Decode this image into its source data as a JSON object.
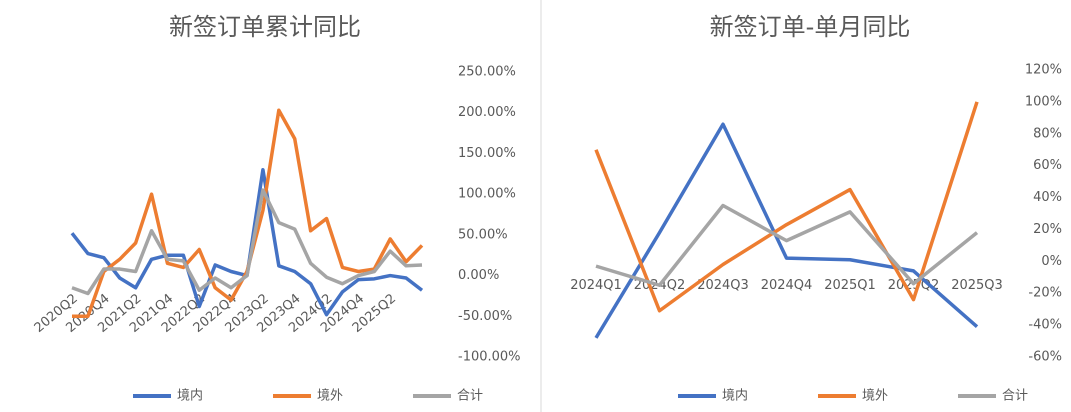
{
  "chart_data": [
    {
      "type": "line",
      "title": "新签订单累计同比",
      "categories": [
        "2020Q2",
        null,
        "2020Q4",
        null,
        "2021Q2",
        null,
        "2021Q4",
        null,
        "2022Q2",
        null,
        "2022Q4",
        null,
        "2023Q2",
        null,
        "2023Q4",
        null,
        "2024Q2",
        null,
        "2024Q4",
        null,
        "2025Q2",
        null,
        null
      ],
      "series": [
        {
          "name": "境内",
          "color": "#4472c4",
          "values": [
            52,
            27,
            22,
            -3,
            -15,
            20,
            25,
            25,
            -38,
            13,
            5,
            0,
            130,
            12,
            5,
            -10,
            -48,
            -20,
            -5,
            -4,
            0,
            -3,
            -18
          ]
        },
        {
          "name": "境外",
          "color": "#ed7d31",
          "values": [
            -50,
            -50,
            5,
            20,
            40,
            100,
            15,
            10,
            32,
            -15,
            -30,
            5,
            80,
            203,
            168,
            55,
            70,
            10,
            5,
            8,
            45,
            17,
            37
          ]
        },
        {
          "name": "合计",
          "color": "#a5a5a5",
          "values": [
            -15,
            -22,
            8,
            8,
            5,
            55,
            20,
            18,
            -18,
            -3,
            -15,
            0,
            105,
            65,
            57,
            15,
            -2,
            -10,
            0,
            5,
            30,
            12,
            13
          ]
        }
      ],
      "ylim": [
        -100,
        250
      ],
      "yticks": [
        {
          "value": -100,
          "label": "-100.00%"
        },
        {
          "value": -50,
          "label": "-50.00%"
        },
        {
          "value": 0,
          "label": "0.00%"
        },
        {
          "value": 50,
          "label": "50.00%"
        },
        {
          "value": 100,
          "label": "100.00%"
        },
        {
          "value": 150,
          "label": "150.00%"
        },
        {
          "value": 200,
          "label": "200.00%"
        },
        {
          "value": 250,
          "label": "250.00%"
        }
      ],
      "legend": "bottom"
    },
    {
      "type": "line",
      "title": "新签订单-单月同比",
      "categories": [
        "2024Q1",
        "2024Q2",
        "2024Q3",
        "2024Q4",
        "2025Q1",
        "2025Q2",
        "2025Q3"
      ],
      "series": [
        {
          "name": "境内",
          "color": "#4472c4",
          "values": [
            -48,
            18,
            86,
            2,
            1,
            -6,
            -41
          ]
        },
        {
          "name": "境外",
          "color": "#ed7d31",
          "values": [
            70,
            -31,
            -2,
            23,
            45,
            -24,
            100
          ]
        },
        {
          "name": "合计",
          "color": "#a5a5a5",
          "values": [
            -3,
            -15,
            35,
            13,
            31,
            -14,
            18
          ]
        }
      ],
      "ylim": [
        -60,
        120
      ],
      "yticks": [
        {
          "value": -60,
          "label": "-60%"
        },
        {
          "value": -40,
          "label": "-40%"
        },
        {
          "value": -20,
          "label": "-20%"
        },
        {
          "value": 0,
          "label": "0%"
        },
        {
          "value": 20,
          "label": "20%"
        },
        {
          "value": 40,
          "label": "40%"
        },
        {
          "value": 60,
          "label": "60%"
        },
        {
          "value": 80,
          "label": "80%"
        },
        {
          "value": 100,
          "label": "100%"
        },
        {
          "value": 120,
          "label": "120%"
        }
      ],
      "legend": "bottom"
    }
  ]
}
